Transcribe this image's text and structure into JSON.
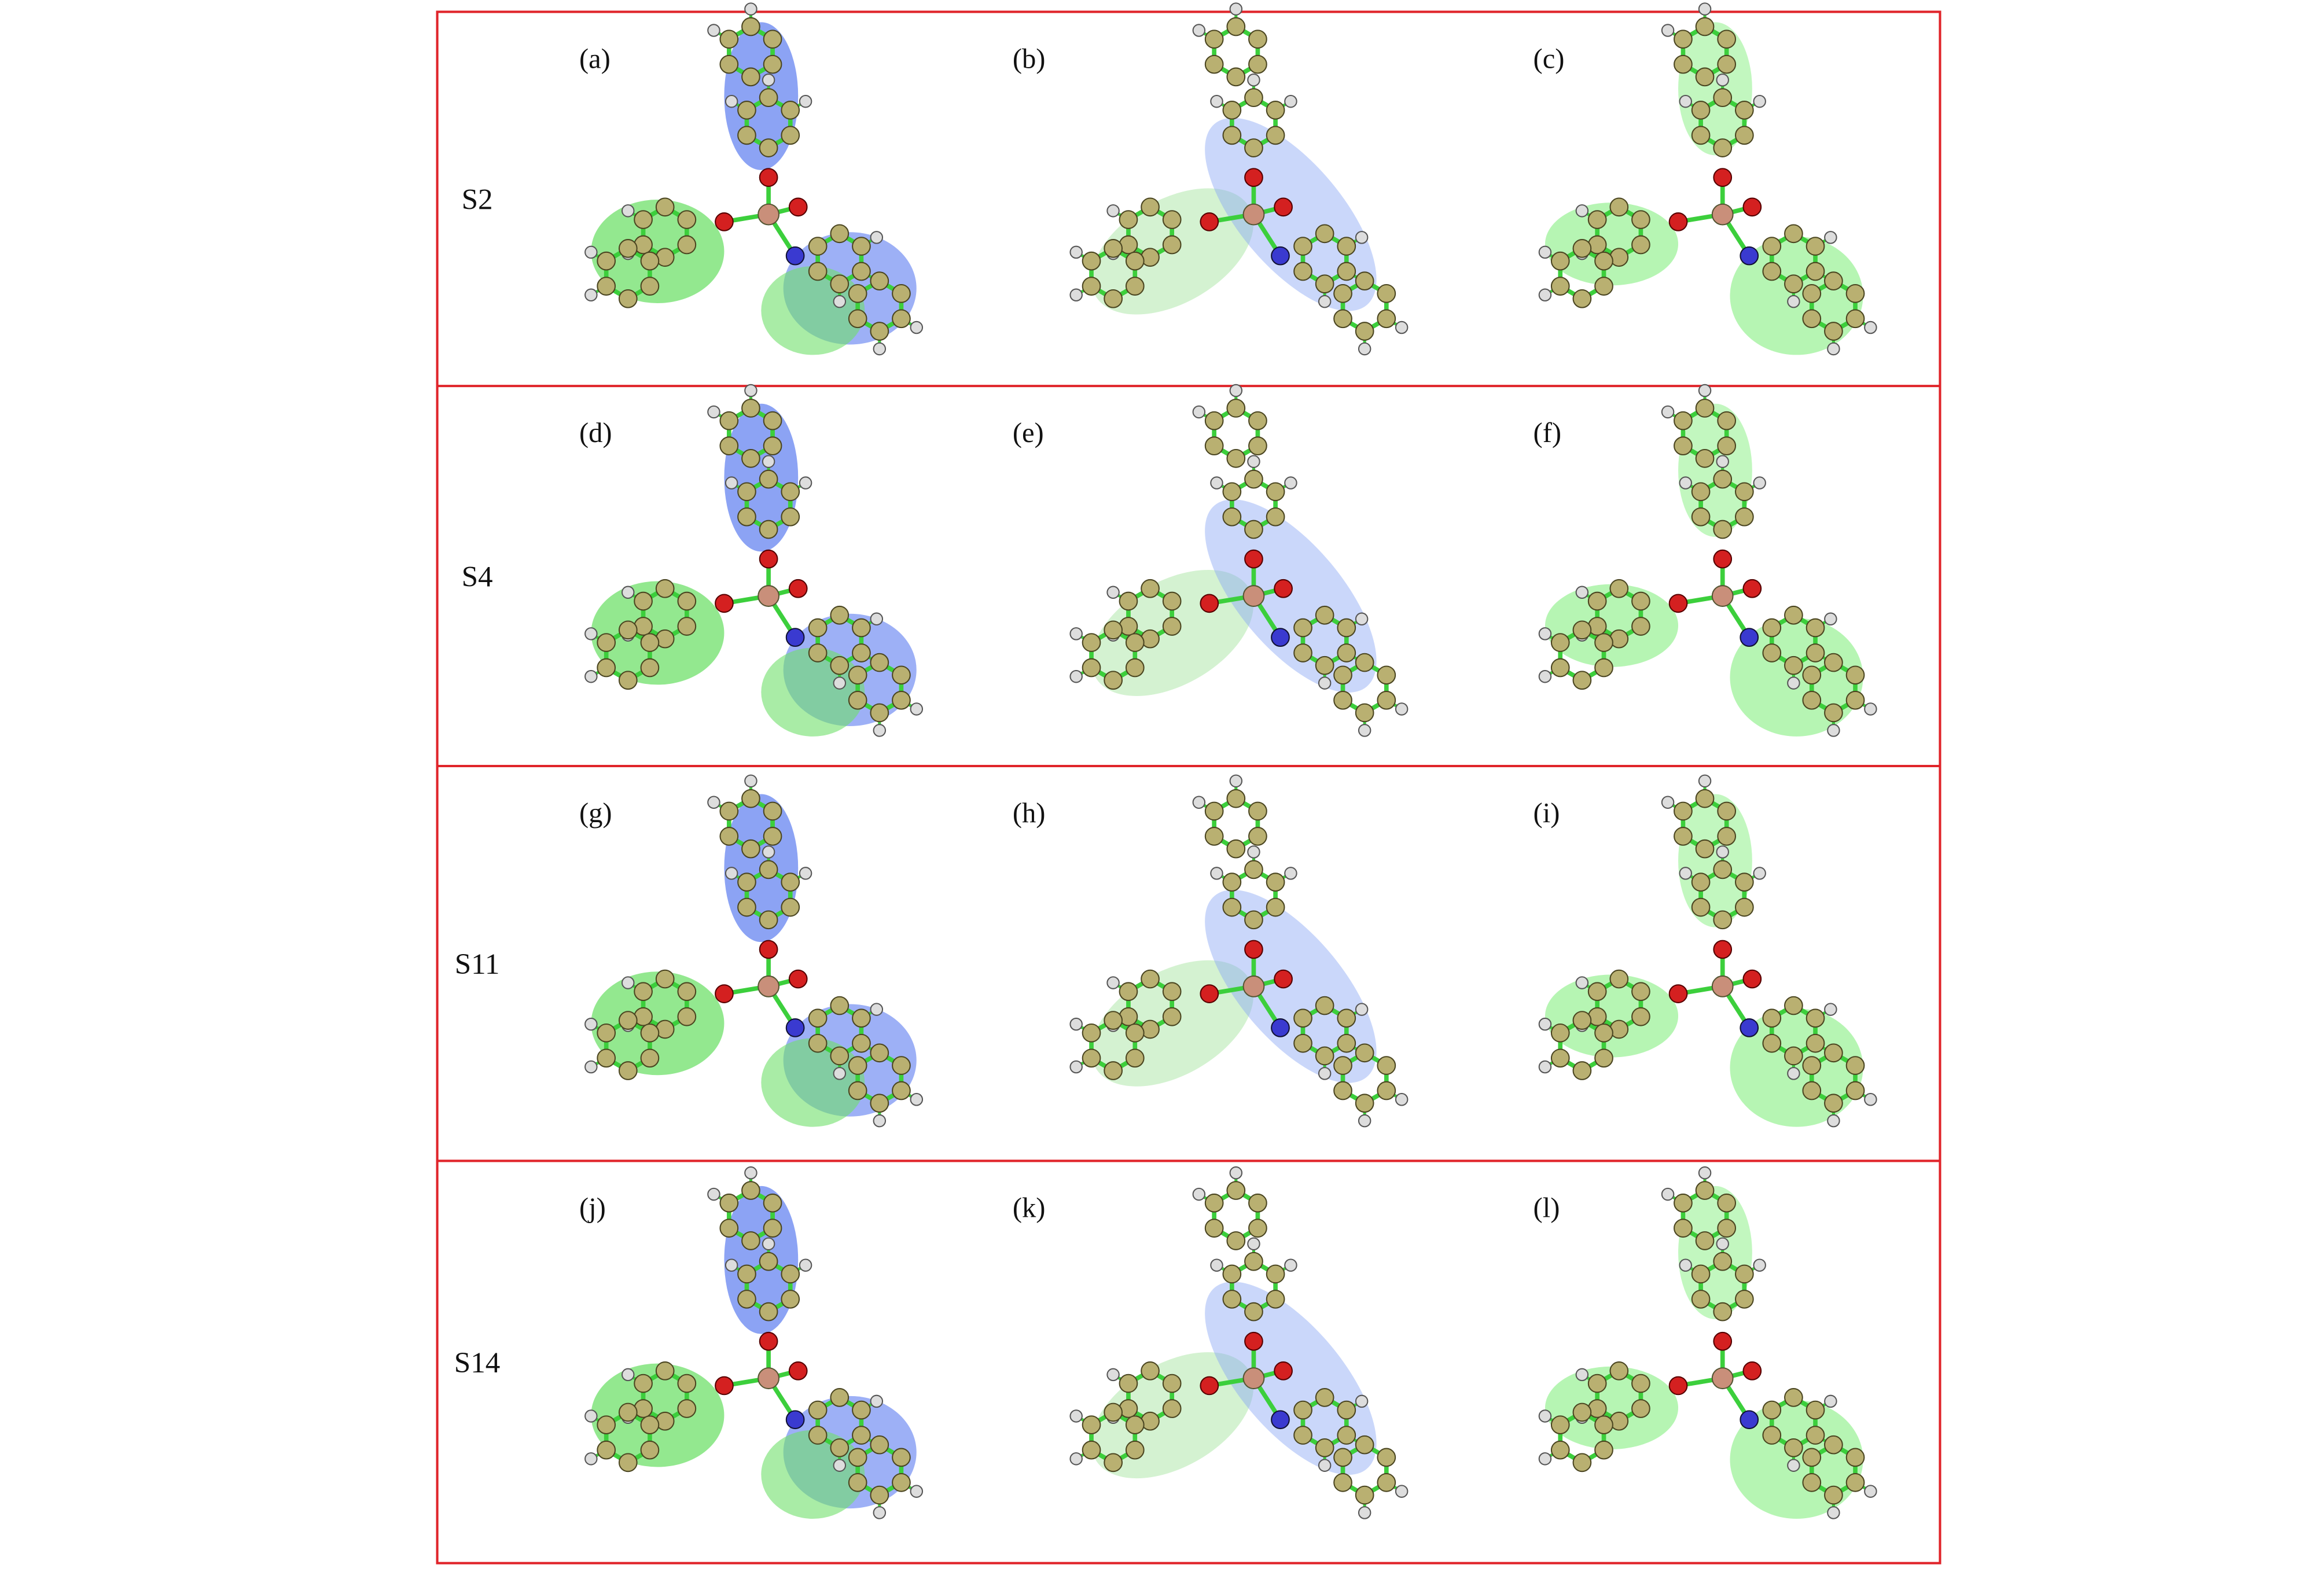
{
  "figure": {
    "rows": [
      {
        "label": "S2",
        "panels": [
          "(a)",
          "(b)",
          "(c)"
        ]
      },
      {
        "label": "S4",
        "panels": [
          "(d)",
          "(e)",
          "(f)"
        ]
      },
      {
        "label": "S11",
        "panels": [
          "(g)",
          "(h)",
          "(i)"
        ]
      },
      {
        "label": "S14",
        "panels": [
          "(j)",
          "(k)",
          "(l)"
        ]
      }
    ]
  }
}
